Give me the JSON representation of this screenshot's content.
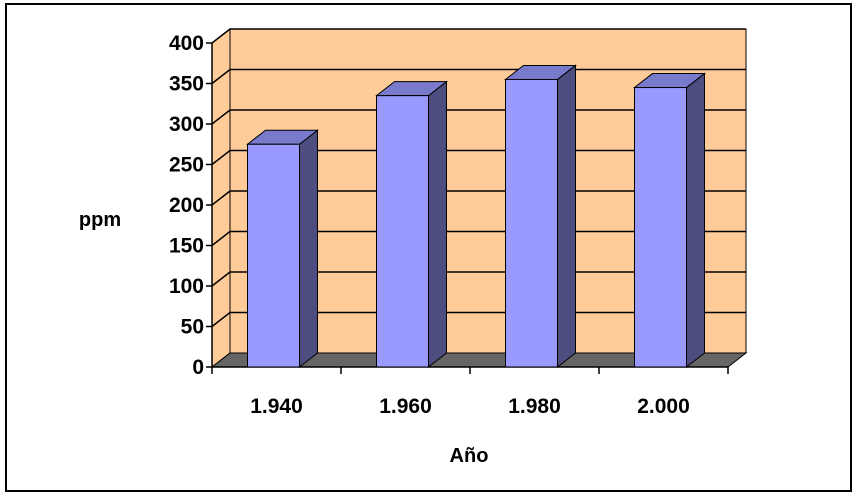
{
  "chart_data": {
    "type": "bar",
    "categories": [
      "1.940",
      "1.960",
      "1.980",
      "2.000"
    ],
    "values": [
      275,
      335,
      355,
      345
    ],
    "title": "",
    "xlabel": "Año",
    "ylabel": "ppm",
    "ylim": [
      0,
      400
    ],
    "yticks": [
      0,
      50,
      100,
      150,
      200,
      250,
      300,
      350,
      400
    ],
    "grid": true,
    "legend": "none",
    "three_d": true,
    "colors": {
      "bar_front": "#9999ff",
      "bar_side": "#4d4d80",
      "bar_top": "#7a7acc",
      "wall": "#ffcc99",
      "floor": "#666666",
      "gridline": "#000000"
    }
  }
}
